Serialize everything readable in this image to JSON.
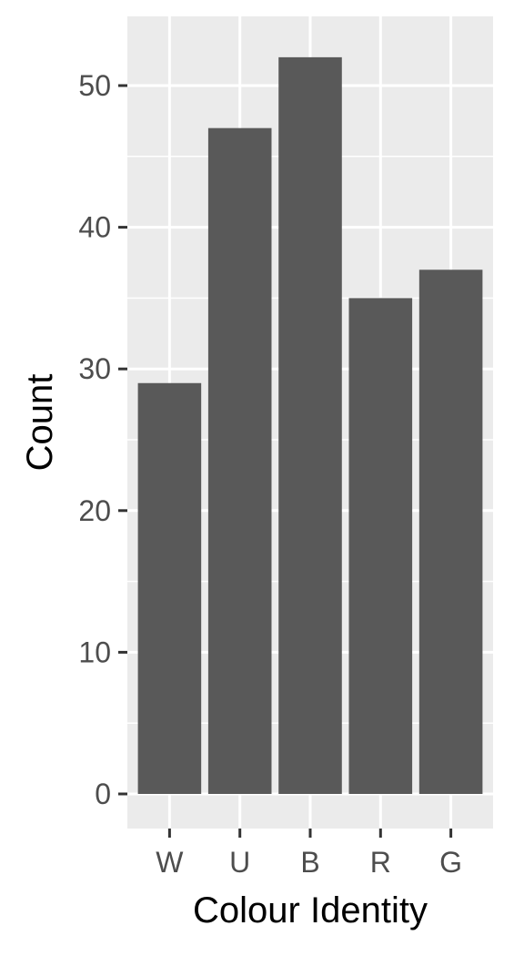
{
  "chart_data": {
    "type": "bar",
    "title": "",
    "xlabel": "Colour Identity",
    "ylabel": "Count",
    "categories": [
      "W",
      "U",
      "B",
      "R",
      "G"
    ],
    "values": [
      29,
      47,
      52,
      35,
      37
    ],
    "ylim": [
      0,
      55
    ],
    "yticks": [
      0,
      10,
      20,
      30,
      40,
      50
    ],
    "grid": true,
    "legend": "none",
    "colors": {
      "bar": "#595959",
      "panel": "#ebebeb",
      "grid": "#ffffff",
      "tick": "#333333"
    }
  }
}
